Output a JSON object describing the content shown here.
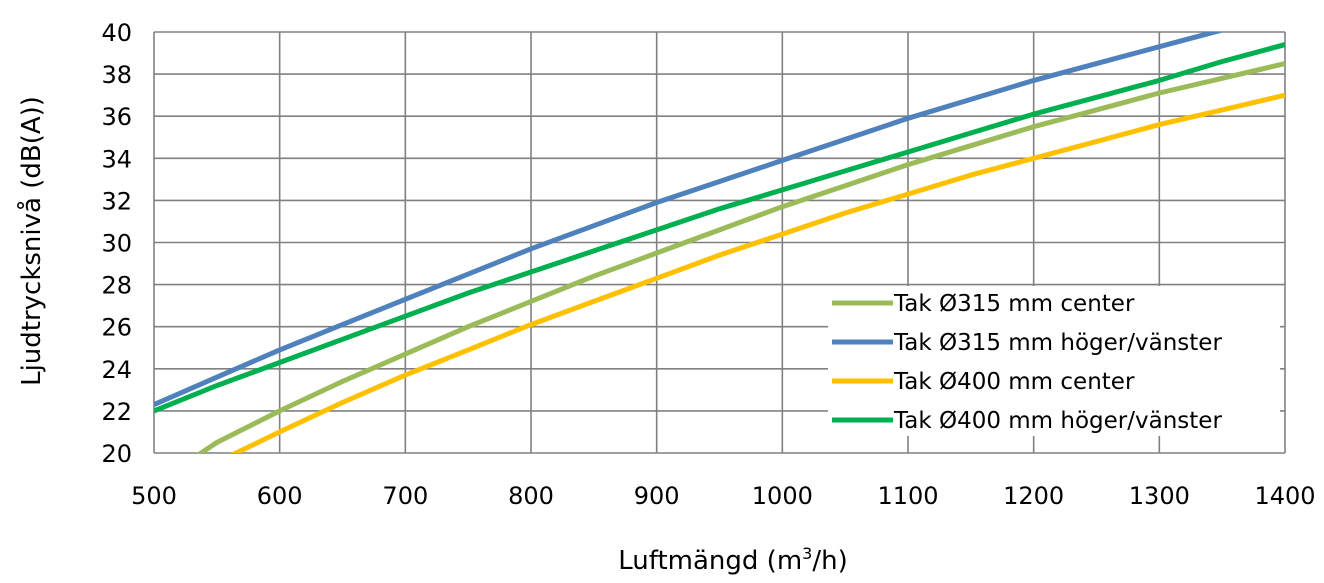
{
  "chart_data": {
    "type": "line",
    "title": "",
    "xlabel": "Luftmängd (m",
    "xlabel_sup": "3",
    "xlabel_end": "/h)",
    "ylabel": "Ljudtrycksnivå (dB(A))",
    "xlim": [
      500,
      1400
    ],
    "ylim": [
      20,
      40
    ],
    "x_ticks": [
      "500",
      "600",
      "700",
      "800",
      "900",
      "1000",
      "1100",
      "1200",
      "1300",
      "1400"
    ],
    "y_ticks": [
      "20",
      "22",
      "24",
      "26",
      "28",
      "30",
      "32",
      "34",
      "36",
      "38",
      "40"
    ],
    "grid": true,
    "legend_position": "bottom-right",
    "series": [
      {
        "name": "Tak Ø315 mm center",
        "color": "#9bbb59",
        "x": [
          530,
          550,
          600,
          650,
          700,
          750,
          800,
          850,
          900,
          950,
          1000,
          1050,
          1100,
          1150,
          1200,
          1250,
          1300,
          1350,
          1400
        ],
        "y": [
          19.7,
          20.5,
          22.0,
          23.4,
          24.7,
          26.0,
          27.2,
          28.4,
          29.5,
          30.6,
          31.7,
          32.7,
          33.7,
          34.6,
          35.5,
          36.3,
          37.1,
          37.8,
          38.5
        ]
      },
      {
        "name": "Tak Ø315 mm höger/vänster",
        "color": "#4f81bd",
        "x": [
          500,
          550,
          600,
          650,
          700,
          750,
          800,
          850,
          900,
          950,
          1000,
          1050,
          1100,
          1150,
          1200,
          1250,
          1300,
          1350
        ],
        "y": [
          22.3,
          23.6,
          24.9,
          26.1,
          27.3,
          28.5,
          29.7,
          30.8,
          31.9,
          32.9,
          33.9,
          34.9,
          35.9,
          36.8,
          37.7,
          38.5,
          39.3,
          40.1
        ]
      },
      {
        "name": "Tak Ø400 mm center",
        "color": "#ffc000",
        "x": [
          555,
          600,
          650,
          700,
          750,
          800,
          850,
          900,
          950,
          1000,
          1050,
          1100,
          1150,
          1200,
          1250,
          1300,
          1350,
          1400
        ],
        "y": [
          19.7,
          21.0,
          22.4,
          23.7,
          24.9,
          26.1,
          27.2,
          28.3,
          29.4,
          30.4,
          31.4,
          32.3,
          33.2,
          34.0,
          34.8,
          35.6,
          36.3,
          37.0
        ]
      },
      {
        "name": "Tak Ø400 mm höger/vänster",
        "color": "#00b050",
        "x": [
          500,
          550,
          600,
          650,
          700,
          750,
          800,
          850,
          900,
          950,
          1000,
          1050,
          1100,
          1150,
          1200,
          1250,
          1300,
          1350,
          1400
        ],
        "y": [
          22.0,
          23.2,
          24.3,
          25.4,
          26.5,
          27.6,
          28.6,
          29.6,
          30.6,
          31.6,
          32.5,
          33.4,
          34.3,
          35.2,
          36.1,
          36.9,
          37.7,
          38.6,
          39.4
        ]
      }
    ]
  }
}
